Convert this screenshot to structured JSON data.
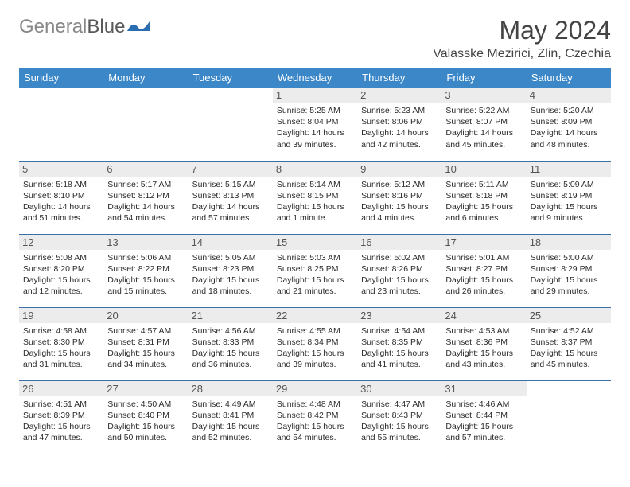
{
  "brand": {
    "part1": "General",
    "part2": "Blue"
  },
  "title": "May 2024",
  "location": "Valasske Mezirici, Zlin, Czechia",
  "colors": {
    "header_bg": "#3b87c8",
    "header_text": "#ffffff",
    "daynum_bg": "#ececec",
    "row_border": "#3b6fa8",
    "logo_primary": "#2a6db0",
    "logo_text": "#5a5a5a"
  },
  "weekdays": [
    "Sunday",
    "Monday",
    "Tuesday",
    "Wednesday",
    "Thursday",
    "Friday",
    "Saturday"
  ],
  "grid": {
    "rows": 5,
    "cols": 7,
    "first_weekday_index": 3,
    "days_in_month": 31
  },
  "days": {
    "1": {
      "sunrise": "5:25 AM",
      "sunset": "8:04 PM",
      "daylight": "14 hours and 39 minutes."
    },
    "2": {
      "sunrise": "5:23 AM",
      "sunset": "8:06 PM",
      "daylight": "14 hours and 42 minutes."
    },
    "3": {
      "sunrise": "5:22 AM",
      "sunset": "8:07 PM",
      "daylight": "14 hours and 45 minutes."
    },
    "4": {
      "sunrise": "5:20 AM",
      "sunset": "8:09 PM",
      "daylight": "14 hours and 48 minutes."
    },
    "5": {
      "sunrise": "5:18 AM",
      "sunset": "8:10 PM",
      "daylight": "14 hours and 51 minutes."
    },
    "6": {
      "sunrise": "5:17 AM",
      "sunset": "8:12 PM",
      "daylight": "14 hours and 54 minutes."
    },
    "7": {
      "sunrise": "5:15 AM",
      "sunset": "8:13 PM",
      "daylight": "14 hours and 57 minutes."
    },
    "8": {
      "sunrise": "5:14 AM",
      "sunset": "8:15 PM",
      "daylight": "15 hours and 1 minute."
    },
    "9": {
      "sunrise": "5:12 AM",
      "sunset": "8:16 PM",
      "daylight": "15 hours and 4 minutes."
    },
    "10": {
      "sunrise": "5:11 AM",
      "sunset": "8:18 PM",
      "daylight": "15 hours and 6 minutes."
    },
    "11": {
      "sunrise": "5:09 AM",
      "sunset": "8:19 PM",
      "daylight": "15 hours and 9 minutes."
    },
    "12": {
      "sunrise": "5:08 AM",
      "sunset": "8:20 PM",
      "daylight": "15 hours and 12 minutes."
    },
    "13": {
      "sunrise": "5:06 AM",
      "sunset": "8:22 PM",
      "daylight": "15 hours and 15 minutes."
    },
    "14": {
      "sunrise": "5:05 AM",
      "sunset": "8:23 PM",
      "daylight": "15 hours and 18 minutes."
    },
    "15": {
      "sunrise": "5:03 AM",
      "sunset": "8:25 PM",
      "daylight": "15 hours and 21 minutes."
    },
    "16": {
      "sunrise": "5:02 AM",
      "sunset": "8:26 PM",
      "daylight": "15 hours and 23 minutes."
    },
    "17": {
      "sunrise": "5:01 AM",
      "sunset": "8:27 PM",
      "daylight": "15 hours and 26 minutes."
    },
    "18": {
      "sunrise": "5:00 AM",
      "sunset": "8:29 PM",
      "daylight": "15 hours and 29 minutes."
    },
    "19": {
      "sunrise": "4:58 AM",
      "sunset": "8:30 PM",
      "daylight": "15 hours and 31 minutes."
    },
    "20": {
      "sunrise": "4:57 AM",
      "sunset": "8:31 PM",
      "daylight": "15 hours and 34 minutes."
    },
    "21": {
      "sunrise": "4:56 AM",
      "sunset": "8:33 PM",
      "daylight": "15 hours and 36 minutes."
    },
    "22": {
      "sunrise": "4:55 AM",
      "sunset": "8:34 PM",
      "daylight": "15 hours and 39 minutes."
    },
    "23": {
      "sunrise": "4:54 AM",
      "sunset": "8:35 PM",
      "daylight": "15 hours and 41 minutes."
    },
    "24": {
      "sunrise": "4:53 AM",
      "sunset": "8:36 PM",
      "daylight": "15 hours and 43 minutes."
    },
    "25": {
      "sunrise": "4:52 AM",
      "sunset": "8:37 PM",
      "daylight": "15 hours and 45 minutes."
    },
    "26": {
      "sunrise": "4:51 AM",
      "sunset": "8:39 PM",
      "daylight": "15 hours and 47 minutes."
    },
    "27": {
      "sunrise": "4:50 AM",
      "sunset": "8:40 PM",
      "daylight": "15 hours and 50 minutes."
    },
    "28": {
      "sunrise": "4:49 AM",
      "sunset": "8:41 PM",
      "daylight": "15 hours and 52 minutes."
    },
    "29": {
      "sunrise": "4:48 AM",
      "sunset": "8:42 PM",
      "daylight": "15 hours and 54 minutes."
    },
    "30": {
      "sunrise": "4:47 AM",
      "sunset": "8:43 PM",
      "daylight": "15 hours and 55 minutes."
    },
    "31": {
      "sunrise": "4:46 AM",
      "sunset": "8:44 PM",
      "daylight": "15 hours and 57 minutes."
    }
  },
  "labels": {
    "sunrise": "Sunrise:",
    "sunset": "Sunset:",
    "daylight": "Daylight:"
  }
}
